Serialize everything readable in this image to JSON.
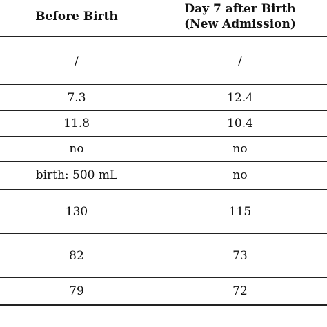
{
  "table": {
    "header": {
      "col1": "Before Birth",
      "col2_line1": "Day 7 after Birth",
      "col2_line2": "(New Admission)"
    },
    "rows": [
      [
        "/",
        "/"
      ],
      [
        "7.3",
        "12.4"
      ],
      [
        "11.8",
        "10.4"
      ],
      [
        "no",
        "no"
      ],
      [
        "birth: 500 mL",
        "no"
      ],
      [
        "130",
        "115"
      ],
      [
        "82",
        "73"
      ],
      [
        "79",
        "72"
      ]
    ]
  }
}
